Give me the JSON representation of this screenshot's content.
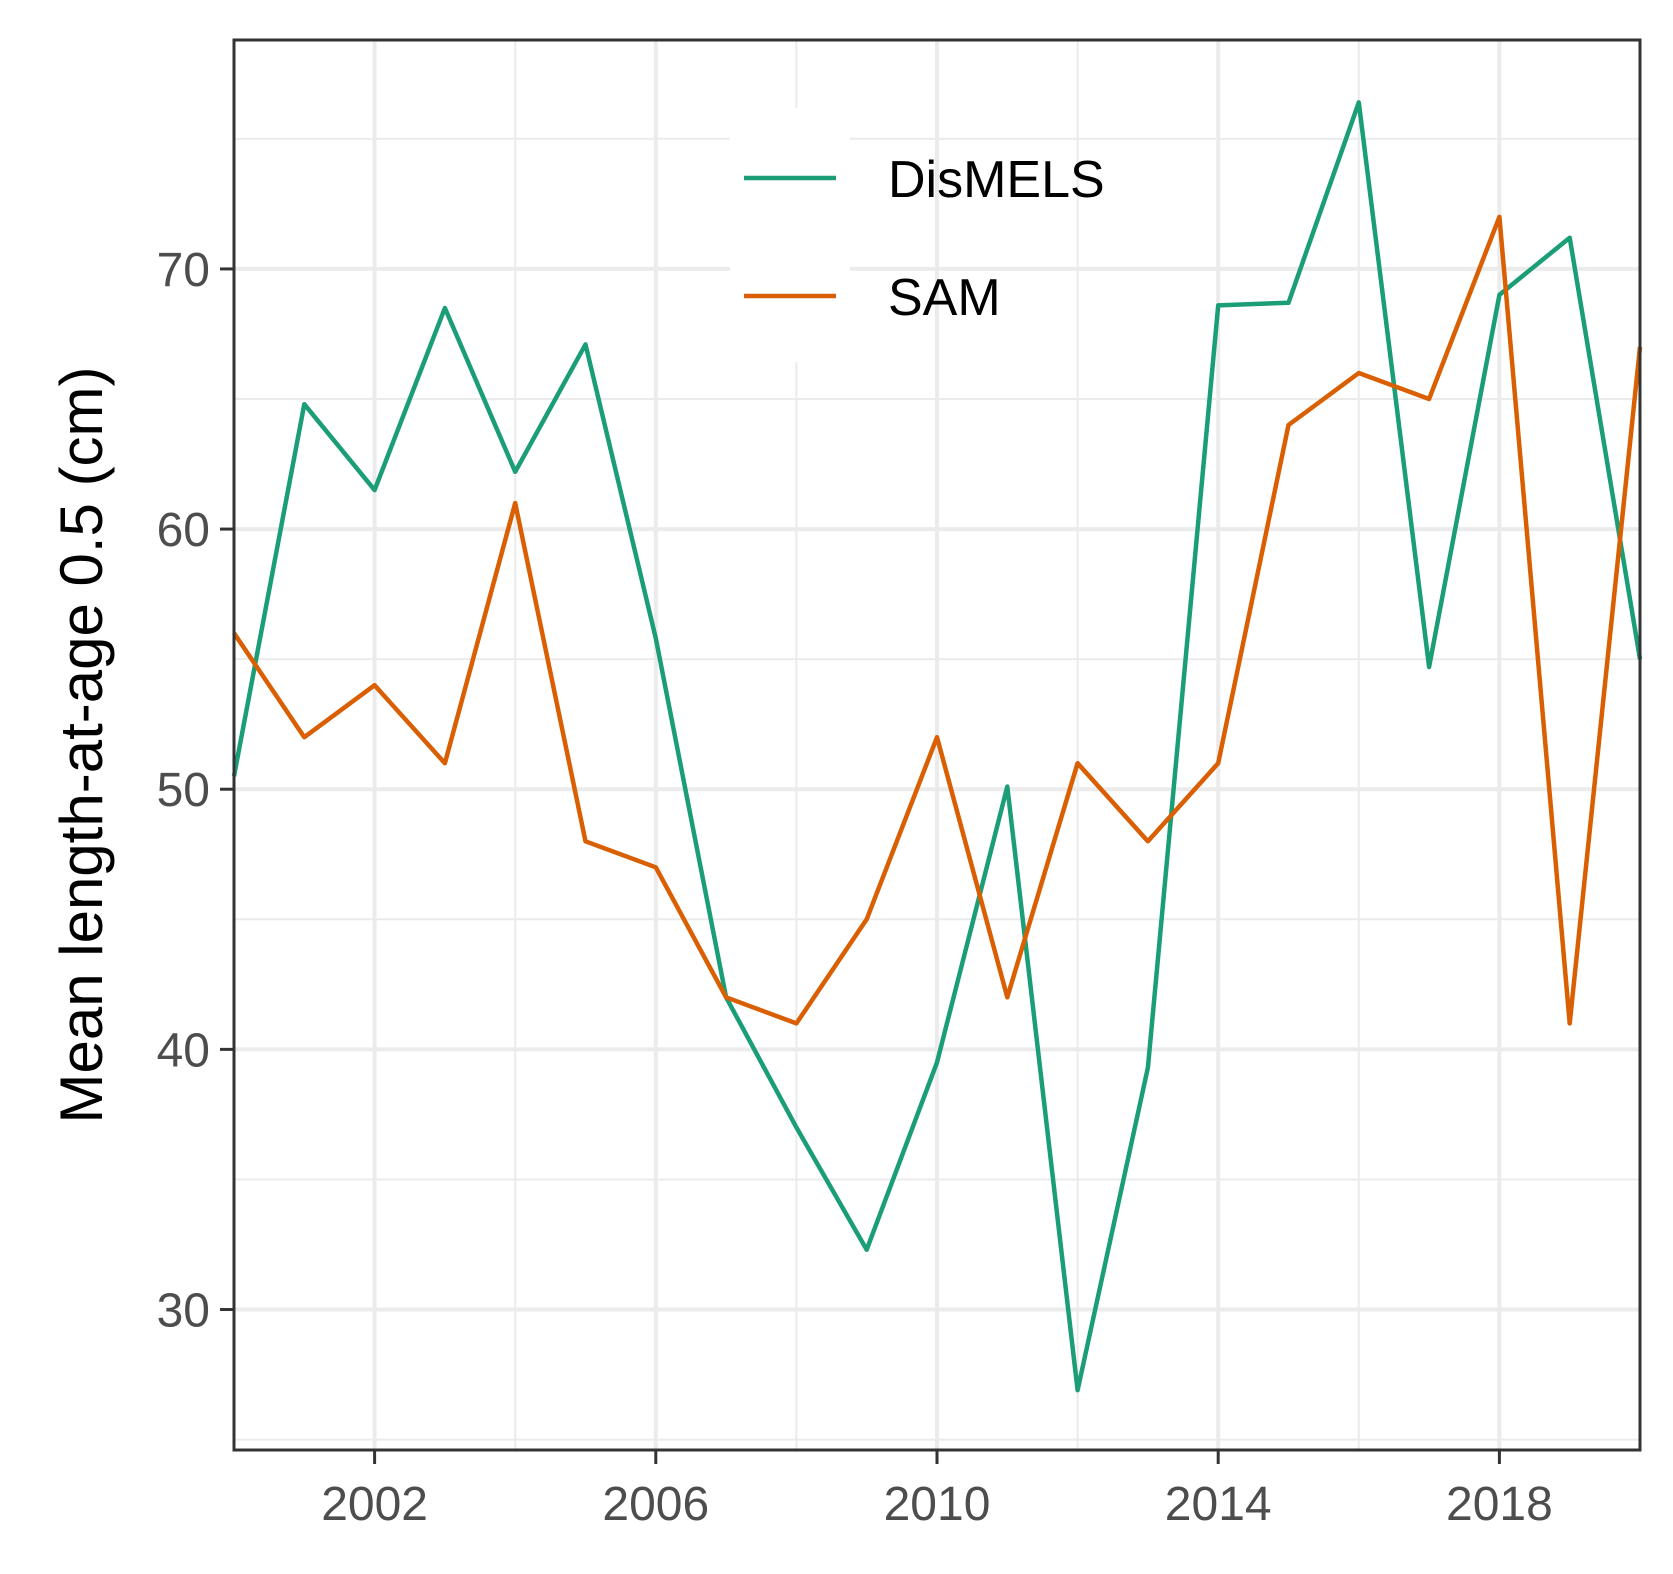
{
  "chart_data": {
    "type": "line",
    "ylabel": "Mean length-at-age 0.5 (cm)",
    "xlabel": "",
    "xlim": [
      2000,
      2020
    ],
    "ylim": [
      24.6,
      78.8
    ],
    "x_ticks": [
      2002,
      2006,
      2010,
      2014,
      2018
    ],
    "x_minor_ticks": [
      2000,
      2004,
      2008,
      2012,
      2016,
      2020
    ],
    "y_ticks": [
      30,
      40,
      50,
      60,
      70
    ],
    "y_minor_ticks": [
      25,
      35,
      45,
      55,
      65,
      75
    ],
    "grid": true,
    "legend_position": "top-center",
    "x": [
      2000,
      2001,
      2002,
      2003,
      2004,
      2005,
      2006,
      2007,
      2008,
      2009,
      2010,
      2011,
      2012,
      2013,
      2014,
      2015,
      2016,
      2017,
      2018,
      2019,
      2020
    ],
    "series": [
      {
        "name": "DisMELS",
        "color": "#1b9e77",
        "values": [
          50.5,
          64.8,
          61.5,
          68.5,
          62.2,
          67.1,
          55.8,
          42.0,
          37.0,
          32.3,
          39.5,
          50.1,
          26.9,
          39.3,
          68.6,
          68.7,
          76.4,
          54.7,
          69.0,
          71.2,
          55.0
        ]
      },
      {
        "name": "SAM",
        "color": "#d95f02",
        "values": [
          56.0,
          52.0,
          54.0,
          51.0,
          61.0,
          48.0,
          47.0,
          42.0,
          41.0,
          45.0,
          52.0,
          42.0,
          51.0,
          48.0,
          51.0,
          64.0,
          66.0,
          65.0,
          72.0,
          41.0,
          67.0
        ]
      }
    ]
  }
}
